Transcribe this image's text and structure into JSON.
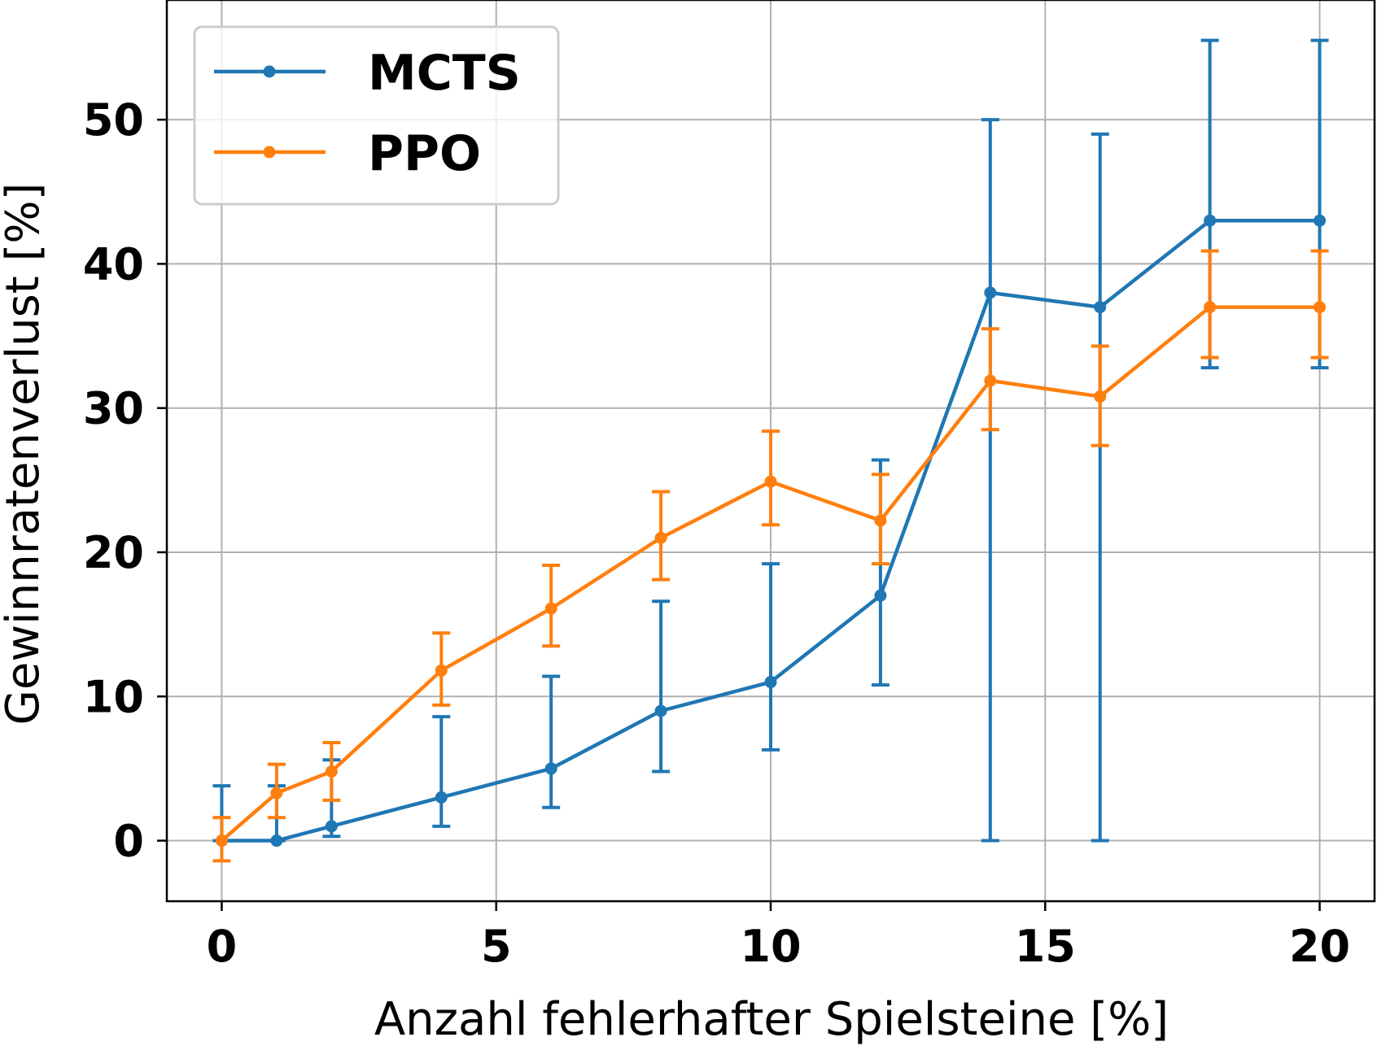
{
  "chart_data": {
    "type": "line",
    "xlabel": "Anzahl fehlerhafter Spielsteine [%]",
    "ylabel": "Gewinnratenverlust [%]",
    "xlim": [
      -1,
      21
    ],
    "ylim": [
      -4.2,
      58.3
    ],
    "x_ticks": [
      0,
      5,
      10,
      15,
      20
    ],
    "y_ticks": [
      0,
      10,
      20,
      30,
      40,
      50
    ],
    "x_tick_labels": [
      "0",
      "5",
      "10",
      "15",
      "20"
    ],
    "y_tick_labels": [
      "0",
      "10",
      "20",
      "30",
      "40",
      "50"
    ],
    "grid": true,
    "legend_position": "top-left",
    "series": [
      {
        "name": "MCTS",
        "color": "#1f77b4",
        "x": [
          0,
          1,
          2,
          4,
          6,
          8,
          10,
          12,
          14,
          16,
          18,
          20
        ],
        "y": [
          0,
          0,
          1,
          3,
          5,
          9,
          11,
          17,
          38,
          37,
          43,
          43
        ],
        "err_low": [
          0,
          0,
          0.3,
          1.0,
          2.3,
          4.8,
          6.3,
          10.8,
          0,
          0,
          32.8,
          32.8
        ],
        "err_high": [
          3.8,
          3.8,
          5.6,
          8.6,
          11.4,
          16.6,
          19.2,
          26.4,
          50.0,
          49.0,
          55.5,
          55.5
        ]
      },
      {
        "name": "PPO",
        "color": "#ff7f0e",
        "x": [
          0,
          1,
          2,
          4,
          6,
          8,
          10,
          12,
          14,
          16,
          18,
          20
        ],
        "y": [
          0,
          3.3,
          4.8,
          11.8,
          16.1,
          21.0,
          24.9,
          22.2,
          31.9,
          30.8,
          37.0,
          37.0
        ],
        "err_low": [
          -1.4,
          1.6,
          2.8,
          9.4,
          13.5,
          18.1,
          21.9,
          19.2,
          28.5,
          27.4,
          33.5,
          33.5
        ],
        "err_high": [
          1.6,
          5.3,
          6.8,
          14.4,
          19.1,
          24.2,
          28.4,
          25.4,
          35.5,
          34.3,
          40.9,
          40.9
        ]
      }
    ]
  }
}
